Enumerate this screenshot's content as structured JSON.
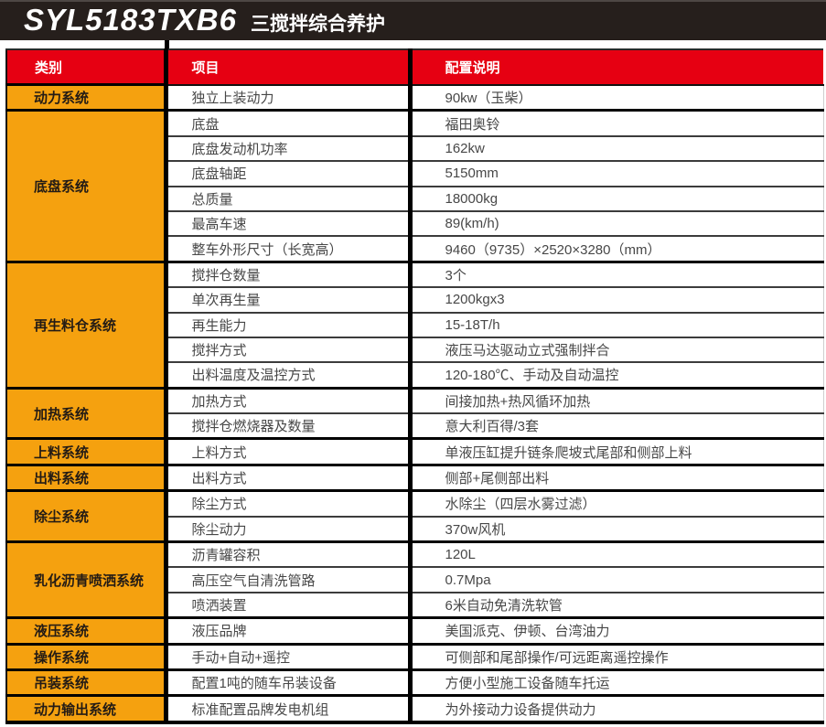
{
  "header": {
    "model": "SYL5183TXB6",
    "subtitle": "三搅拌综合养护"
  },
  "table": {
    "columns": [
      "类别",
      "项目",
      "配置说明"
    ],
    "groups": [
      {
        "category": "动力系统",
        "rows": [
          [
            "独立上装动力",
            "90kw（玉柴）"
          ]
        ]
      },
      {
        "category": "底盘系统",
        "rows": [
          [
            "底盘",
            "福田奥铃"
          ],
          [
            "底盘发动机功率",
            "162kw"
          ],
          [
            "底盘轴距",
            "5150mm"
          ],
          [
            "总质量",
            "18000kg"
          ],
          [
            "最高车速",
            "89(km/h)"
          ],
          [
            "整车外形尺寸（长宽高）",
            "9460（9735）×2520×3280（mm）"
          ]
        ]
      },
      {
        "category": "再生料仓系统",
        "rows": [
          [
            "搅拌仓数量",
            "3个"
          ],
          [
            "单次再生量",
            "1200kgx3"
          ],
          [
            "再生能力",
            "15-18T/h"
          ],
          [
            "搅拌方式",
            "液压马达驱动立式强制拌合"
          ],
          [
            "出料温度及温控方式",
            "120-180℃、手动及自动温控"
          ]
        ]
      },
      {
        "category": "加热系统",
        "rows": [
          [
            "加热方式",
            "间接加热+热风循环加热"
          ],
          [
            "搅拌仓燃烧器及数量",
            "意大利百得/3套"
          ]
        ]
      },
      {
        "category": "上料系统",
        "rows": [
          [
            "上料方式",
            "单液压缸提升链条爬坡式尾部和侧部上料"
          ]
        ]
      },
      {
        "category": "出料系统",
        "rows": [
          [
            "出料方式",
            "侧部+尾侧部出料"
          ]
        ]
      },
      {
        "category": "除尘系统",
        "rows": [
          [
            "除尘方式",
            "水除尘（四层水雾过滤）"
          ],
          [
            "除尘动力",
            "370w风机"
          ]
        ]
      },
      {
        "category": "乳化沥青喷洒系统",
        "rows": [
          [
            "沥青罐容积",
            "120L"
          ],
          [
            "高压空气自清洗管路",
            "0.7Mpa"
          ],
          [
            "喷洒装置",
            "6米自动免清洗软管"
          ]
        ]
      },
      {
        "category": "液压系统",
        "rows": [
          [
            "液压品牌",
            "美国派克、伊顿、台湾油力"
          ]
        ]
      },
      {
        "category": "操作系统",
        "rows": [
          [
            "手动+自动+遥控",
            "可侧部和尾部操作/可远距离遥控操作"
          ]
        ]
      },
      {
        "category": "吊装系统",
        "rows": [
          [
            "配置1吨的随车吊装设备",
            "方便小型施工设备随车托运"
          ]
        ]
      },
      {
        "category": "动力输出系统",
        "rows": [
          [
            "标准配置品牌发电机组",
            "为外接动力设备提供动力"
          ]
        ]
      }
    ]
  },
  "colors": {
    "title_bar": "#261f1c",
    "header_red": "#e60012",
    "category_orange": "#f5a10f",
    "cell_text": "#474747",
    "category_text": "#231b15"
  }
}
